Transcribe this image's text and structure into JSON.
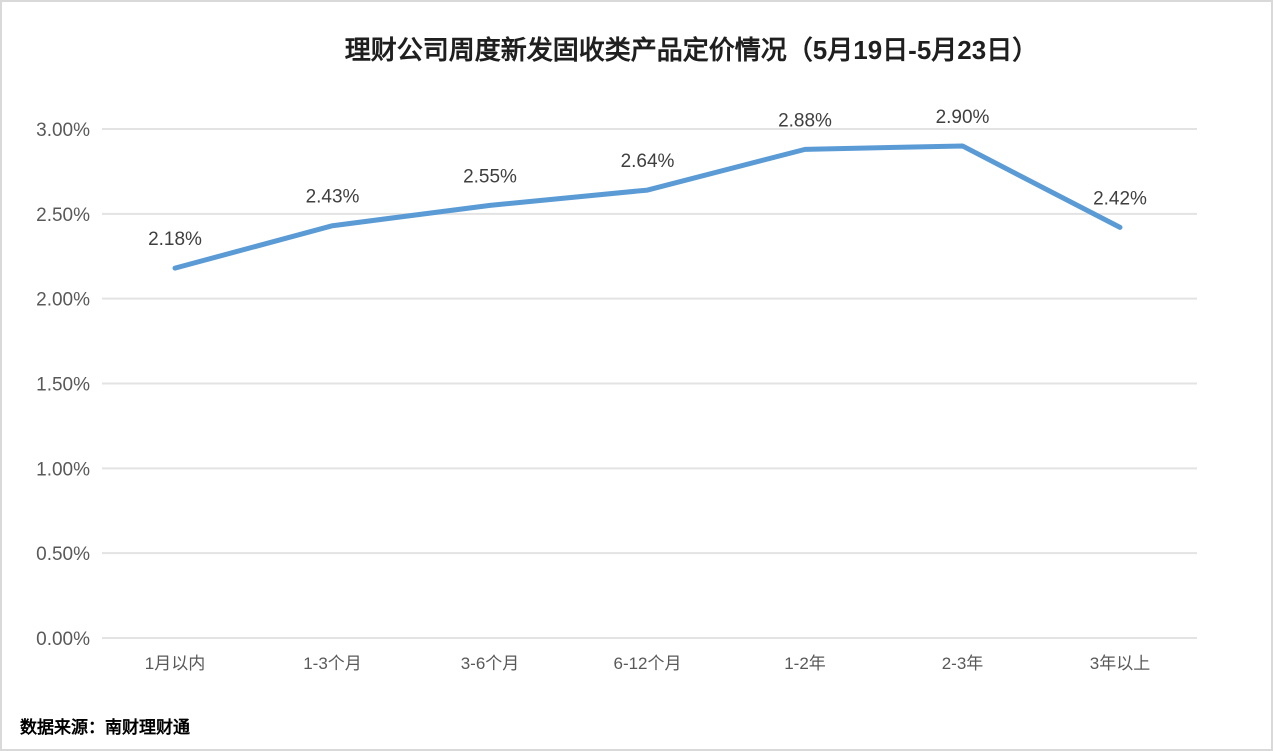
{
  "page": {
    "source_note": "数据来源：南财理财通"
  },
  "chart_data": {
    "type": "line",
    "title": "理财公司周度新发固收类产品定价情况（5月19日-5月23日）",
    "categories": [
      "1月以内",
      "1-3个月",
      "3-6个月",
      "6-12个月",
      "1-2年",
      "2-3年",
      "3年以上"
    ],
    "values": [
      2.18,
      2.43,
      2.55,
      2.64,
      2.88,
      2.9,
      2.42
    ],
    "data_labels": [
      "2.18%",
      "2.43%",
      "2.55%",
      "2.64%",
      "2.88%",
      "2.90%",
      "2.42%"
    ],
    "y_ticks": [
      "0.00%",
      "0.50%",
      "1.00%",
      "1.50%",
      "2.00%",
      "2.50%",
      "3.00%"
    ],
    "ylim": [
      0,
      3.0
    ],
    "xlabel": "",
    "ylabel": "",
    "grid": true,
    "legend": "none",
    "colors": {
      "line": "#5B9BD5",
      "grid": "#E3E3E3",
      "axis_labels": "#595959",
      "data_labels": "#3F3F3F",
      "title": "#1F1F1F",
      "frame_border": "#D9D9D9"
    }
  }
}
